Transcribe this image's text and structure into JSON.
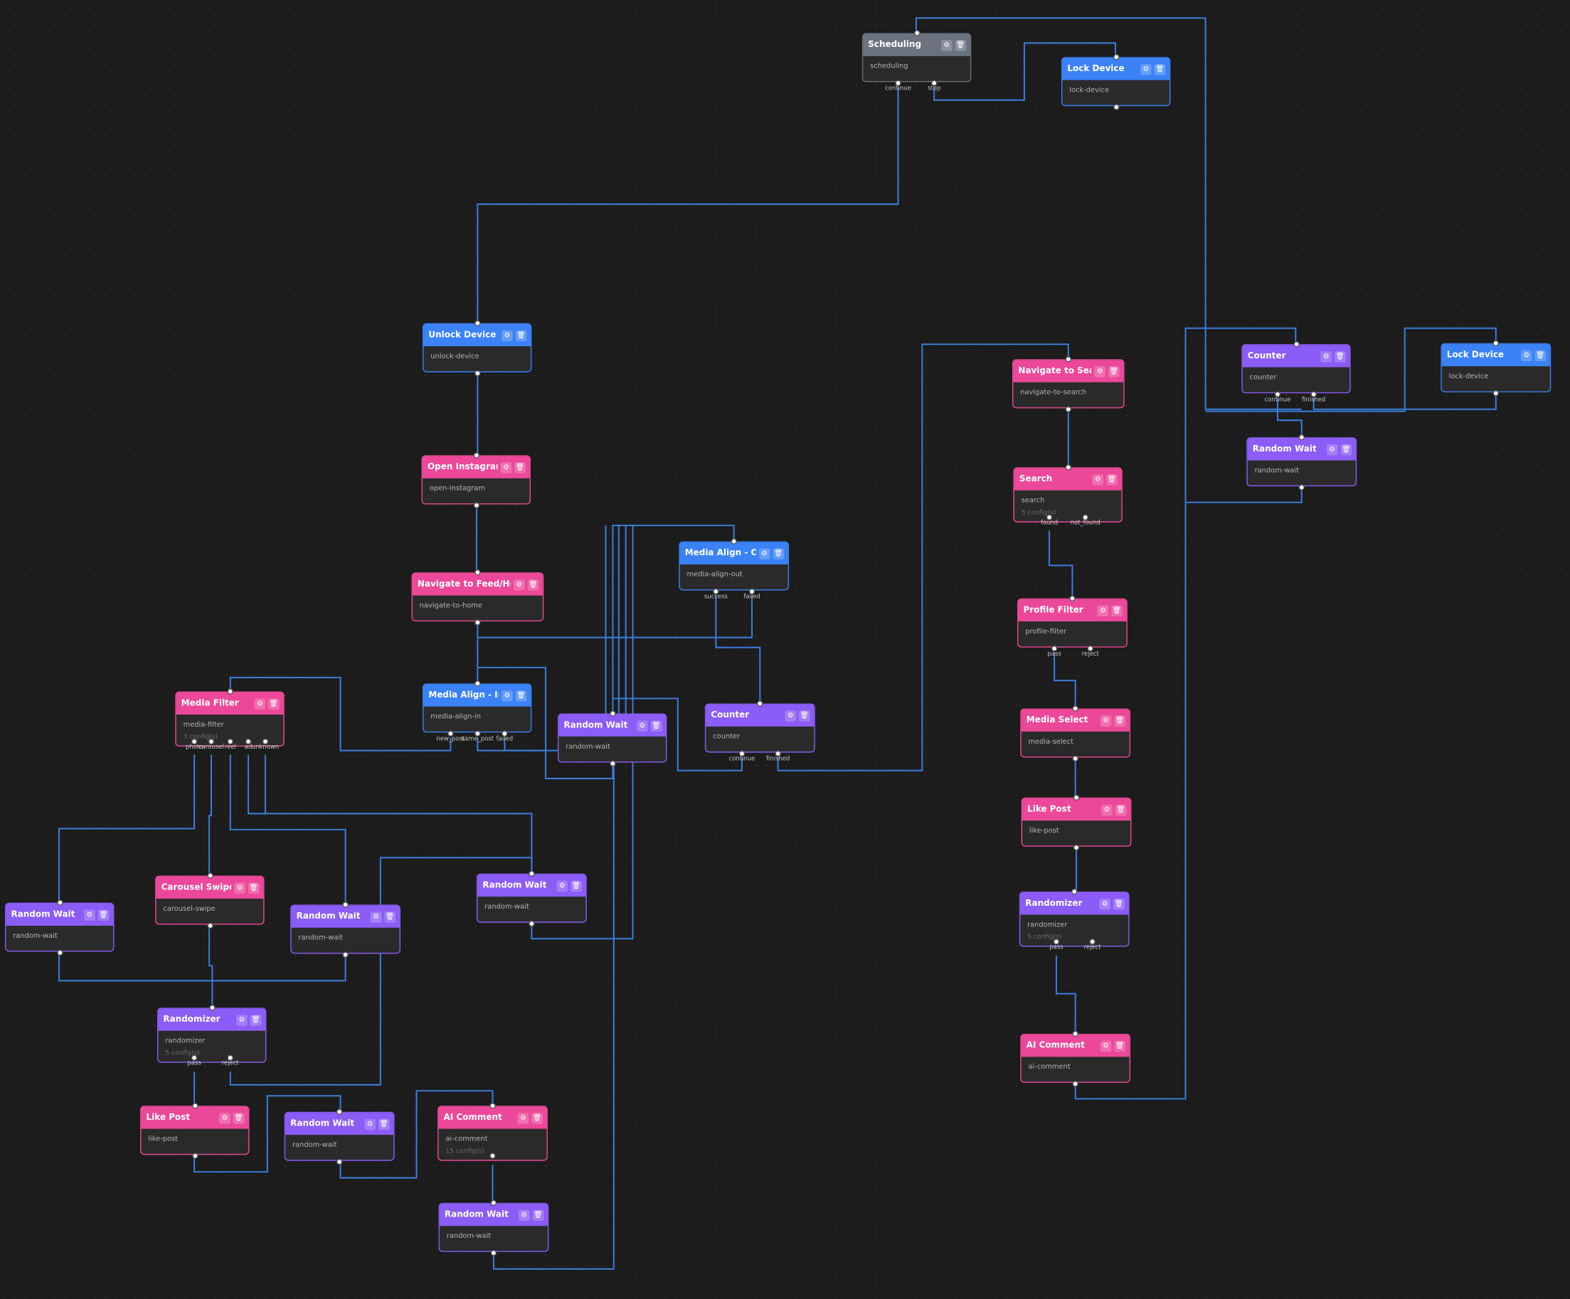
{
  "colors": {
    "system": "#6b7280",
    "device": "#3b82f6",
    "action": "#ec4899",
    "control": "#8b5cf6",
    "edge": "#3b7fe0",
    "canvas": "#1c1c1c"
  },
  "icons": {
    "settings": "gear-icon",
    "delete": "trash-icon"
  },
  "nodes": [
    {
      "title": "Scheduling",
      "type": "scheduling",
      "kind": "system",
      "outputs": [
        "continue",
        "stop"
      ]
    },
    {
      "title": "Lock Device",
      "type": "lock-device",
      "kind": "device"
    },
    {
      "title": "Unlock Device",
      "type": "unlock-device",
      "kind": "device"
    },
    {
      "title": "Open Instagram",
      "type": "open-instagram",
      "kind": "action"
    },
    {
      "title": "Navigate to Feed/Home",
      "type": "navigate-to-home",
      "kind": "action"
    },
    {
      "title": "Media Align - Out",
      "type": "media-align-out",
      "kind": "device",
      "outputs": [
        "success",
        "failed"
      ]
    },
    {
      "title": "Media Align - In",
      "type": "media-align-in",
      "kind": "device",
      "outputs": [
        "new_post",
        "same_post",
        "failed"
      ]
    },
    {
      "title": "Media Filter",
      "type": "media-filter",
      "config": "3 config(s)",
      "kind": "action",
      "outputs": [
        "photo",
        "carousel",
        "reel",
        "ad",
        "unknown"
      ]
    },
    {
      "title": "Random Wait",
      "type": "random-wait",
      "kind": "control"
    },
    {
      "title": "Counter",
      "type": "counter",
      "kind": "control",
      "outputs": [
        "continue",
        "finished"
      ]
    },
    {
      "title": "Navigate to Search",
      "type": "navigate-to-search",
      "kind": "action"
    },
    {
      "title": "Search",
      "type": "search",
      "config": "5 config(s)",
      "kind": "action",
      "outputs": [
        "found",
        "not_found"
      ]
    },
    {
      "title": "Profile Filter",
      "type": "profile-filter",
      "kind": "action",
      "outputs": [
        "pass",
        "reject"
      ]
    },
    {
      "title": "Media Select",
      "type": "media-select",
      "kind": "action"
    },
    {
      "title": "Like Post",
      "type": "like-post",
      "kind": "action"
    },
    {
      "title": "Randomizer",
      "type": "randomizer",
      "config": "5 config(s)",
      "kind": "control",
      "outputs": [
        "pass",
        "reject"
      ]
    },
    {
      "title": "AI Comment",
      "type": "ai-comment",
      "kind": "action"
    },
    {
      "title": "Counter",
      "type": "counter",
      "kind": "control",
      "outputs": [
        "continue",
        "finished"
      ]
    },
    {
      "title": "Lock Device",
      "type": "lock-device",
      "kind": "device"
    },
    {
      "title": "Random Wait",
      "type": "random-wait",
      "kind": "control"
    },
    {
      "title": "Random Wait",
      "type": "random-wait",
      "kind": "control"
    },
    {
      "title": "Carousel Swipe",
      "type": "carousel-swipe",
      "kind": "action"
    },
    {
      "title": "Random Wait",
      "type": "random-wait",
      "kind": "control"
    },
    {
      "title": "Random Wait",
      "type": "random-wait",
      "kind": "control"
    },
    {
      "title": "Randomizer",
      "type": "randomizer",
      "config": "5 config(s)",
      "kind": "control",
      "outputs": [
        "pass",
        "reject"
      ]
    },
    {
      "title": "Like Post",
      "type": "like-post",
      "kind": "action"
    },
    {
      "title": "Random Wait",
      "type": "random-wait",
      "kind": "control"
    },
    {
      "title": "AI Comment",
      "type": "ai-comment",
      "config": "15 config(s)",
      "kind": "action"
    },
    {
      "title": "Random Wait",
      "type": "random-wait",
      "kind": "control"
    }
  ]
}
